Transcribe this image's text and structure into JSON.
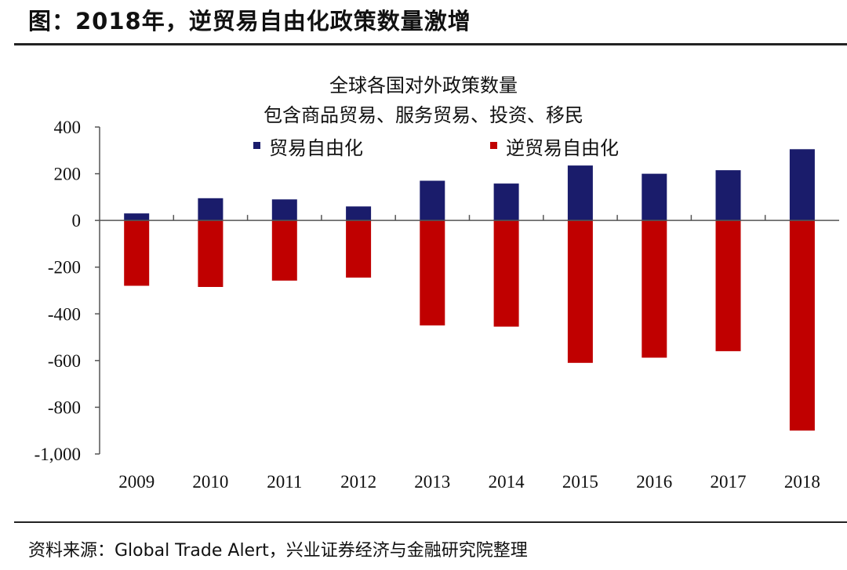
{
  "header": {
    "title": "图：2018年，逆贸易自由化政策数量激增"
  },
  "footer": {
    "source": "资料来源：Global Trade Alert，兴业证券经济与金融研究院整理"
  },
  "colors": {
    "liberalizing": "#1a1c6b",
    "harmful": "#c00000",
    "axis": "#555555"
  },
  "chart_data": {
    "type": "bar",
    "title": "全球各国对外政策数量",
    "subtitle": "包含商品贸易、服务贸易、投资、移民",
    "categories": [
      "2009",
      "2010",
      "2011",
      "2012",
      "2013",
      "2014",
      "2015",
      "2016",
      "2017",
      "2018"
    ],
    "series": [
      {
        "name": "贸易自由化",
        "values": [
          30,
          95,
          90,
          60,
          170,
          158,
          235,
          200,
          215,
          305
        ]
      },
      {
        "name": "逆贸易自由化",
        "values": [
          -280,
          -285,
          -258,
          -245,
          -450,
          -455,
          -610,
          -588,
          -560,
          -900
        ]
      }
    ],
    "ylim": [
      -1000,
      400
    ],
    "yticks": [
      400,
      200,
      0,
      -200,
      -400,
      -600,
      -800,
      -1000
    ],
    "ytick_labels": [
      "400",
      "200",
      "0",
      "-200",
      "-400",
      "-600",
      "-800",
      "-1,000"
    ],
    "xlabel": "",
    "ylabel": "",
    "legend_position": "top",
    "grid": false,
    "stacked": true
  }
}
